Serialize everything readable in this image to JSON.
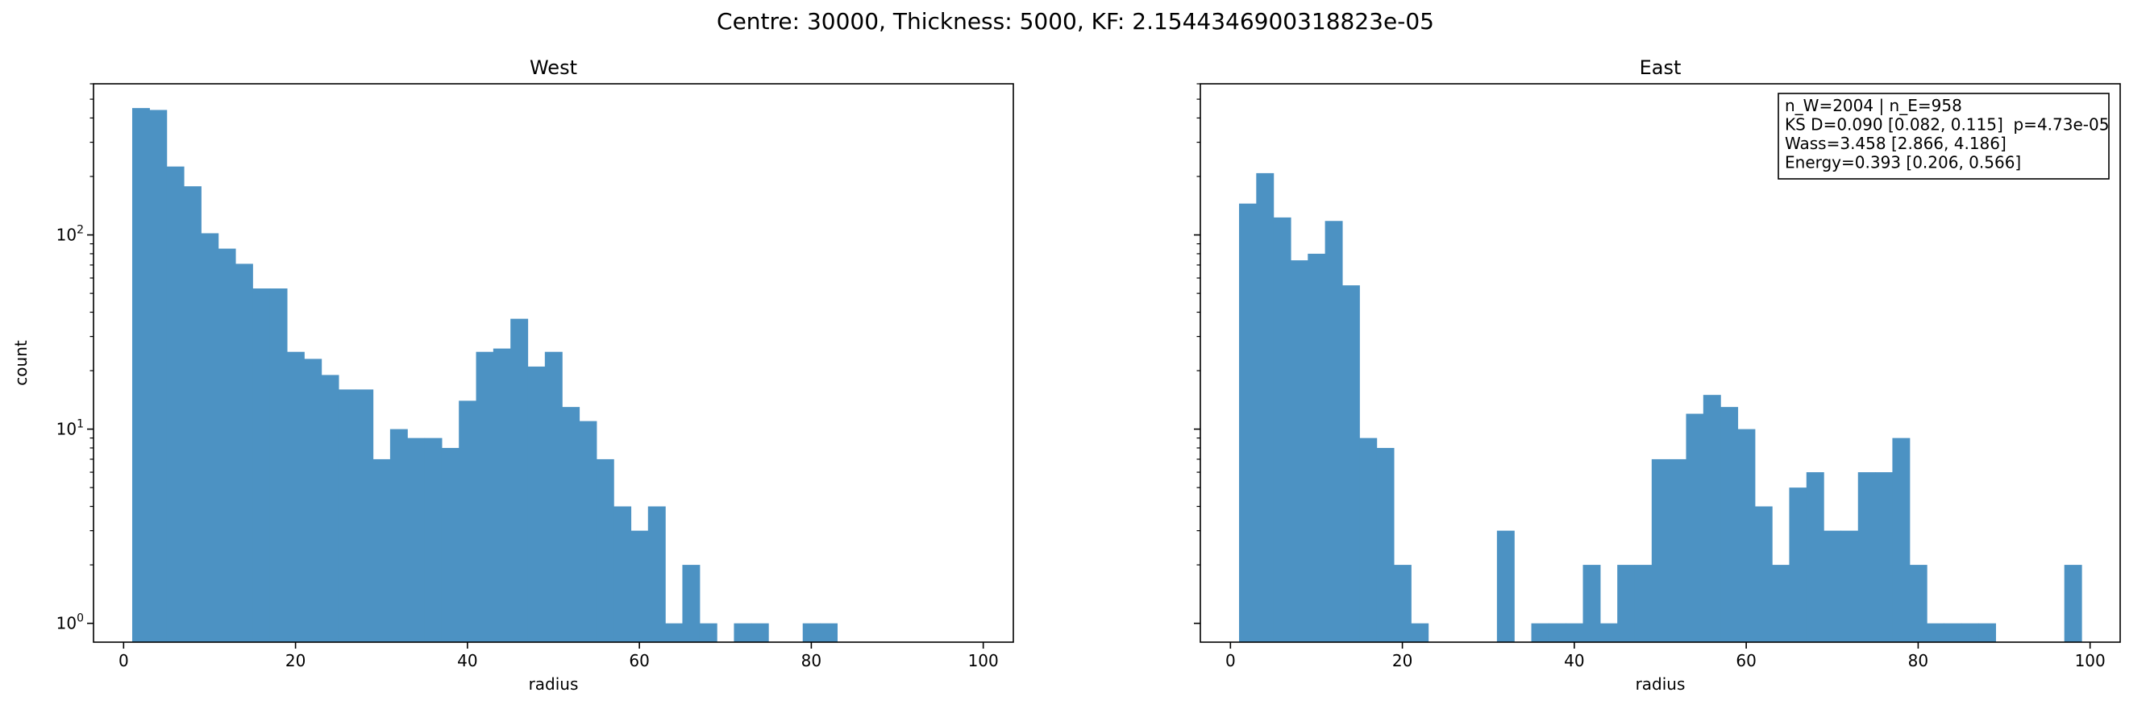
{
  "figure": {
    "suptitle": "Centre: 30000, Thickness: 5000, KF: 2.1544346900318823e-05",
    "bar_color": "#4c92c3"
  },
  "chart_data": [
    {
      "type": "bar",
      "title": "West",
      "xlabel": "radius",
      "ylabel": "count",
      "xlim": [
        -3.5,
        103.5
      ],
      "ylim": [
        0.8,
        600
      ],
      "yscale": "log",
      "xticks": [
        0,
        20,
        40,
        60,
        80,
        100
      ],
      "yticks": [
        {
          "value": 1,
          "base": "10",
          "exp": "0"
        },
        {
          "value": 10,
          "base": "10",
          "exp": "1"
        },
        {
          "value": 100,
          "base": "10",
          "exp": "2"
        }
      ],
      "bin_width": 2,
      "bins": [
        {
          "x": 1,
          "count": 450
        },
        {
          "x": 3,
          "count": 440
        },
        {
          "x": 5,
          "count": 225
        },
        {
          "x": 7,
          "count": 178
        },
        {
          "x": 9,
          "count": 102
        },
        {
          "x": 11,
          "count": 85
        },
        {
          "x": 13,
          "count": 71
        },
        {
          "x": 15,
          "count": 53
        },
        {
          "x": 17,
          "count": 53
        },
        {
          "x": 19,
          "count": 25
        },
        {
          "x": 21,
          "count": 23
        },
        {
          "x": 23,
          "count": 19
        },
        {
          "x": 25,
          "count": 16
        },
        {
          "x": 27,
          "count": 16
        },
        {
          "x": 29,
          "count": 7
        },
        {
          "x": 31,
          "count": 10
        },
        {
          "x": 33,
          "count": 9
        },
        {
          "x": 35,
          "count": 9
        },
        {
          "x": 37,
          "count": 8
        },
        {
          "x": 39,
          "count": 14
        },
        {
          "x": 41,
          "count": 25
        },
        {
          "x": 43,
          "count": 26
        },
        {
          "x": 45,
          "count": 37
        },
        {
          "x": 47,
          "count": 21
        },
        {
          "x": 49,
          "count": 25
        },
        {
          "x": 51,
          "count": 13
        },
        {
          "x": 53,
          "count": 11
        },
        {
          "x": 55,
          "count": 7
        },
        {
          "x": 57,
          "count": 4
        },
        {
          "x": 59,
          "count": 3
        },
        {
          "x": 61,
          "count": 4
        },
        {
          "x": 63,
          "count": 1
        },
        {
          "x": 65,
          "count": 2
        },
        {
          "x": 67,
          "count": 1
        },
        {
          "x": 71,
          "count": 1
        },
        {
          "x": 73,
          "count": 1
        },
        {
          "x": 79,
          "count": 1
        },
        {
          "x": 81,
          "count": 1
        }
      ]
    },
    {
      "type": "bar",
      "title": "East",
      "xlabel": "radius",
      "ylabel": "",
      "xlim": [
        -3.5,
        103.5
      ],
      "ylim": [
        0.8,
        600
      ],
      "yscale": "log",
      "xticks": [
        0,
        20,
        40,
        60,
        80,
        100
      ],
      "yticks": [],
      "bin_width": 2,
      "bins": [
        {
          "x": 1,
          "count": 145
        },
        {
          "x": 3,
          "count": 208
        },
        {
          "x": 5,
          "count": 123
        },
        {
          "x": 7,
          "count": 74
        },
        {
          "x": 9,
          "count": 80
        },
        {
          "x": 11,
          "count": 118
        },
        {
          "x": 13,
          "count": 55
        },
        {
          "x": 15,
          "count": 9
        },
        {
          "x": 17,
          "count": 8
        },
        {
          "x": 19,
          "count": 2
        },
        {
          "x": 21,
          "count": 1
        },
        {
          "x": 31,
          "count": 3
        },
        {
          "x": 35,
          "count": 1
        },
        {
          "x": 37,
          "count": 1
        },
        {
          "x": 39,
          "count": 1
        },
        {
          "x": 41,
          "count": 2
        },
        {
          "x": 43,
          "count": 1
        },
        {
          "x": 45,
          "count": 2
        },
        {
          "x": 47,
          "count": 2
        },
        {
          "x": 49,
          "count": 7
        },
        {
          "x": 51,
          "count": 7
        },
        {
          "x": 53,
          "count": 12
        },
        {
          "x": 55,
          "count": 15
        },
        {
          "x": 57,
          "count": 13
        },
        {
          "x": 59,
          "count": 10
        },
        {
          "x": 61,
          "count": 4
        },
        {
          "x": 63,
          "count": 2
        },
        {
          "x": 65,
          "count": 5
        },
        {
          "x": 67,
          "count": 6
        },
        {
          "x": 69,
          "count": 3
        },
        {
          "x": 71,
          "count": 3
        },
        {
          "x": 73,
          "count": 6
        },
        {
          "x": 75,
          "count": 6
        },
        {
          "x": 77,
          "count": 9
        },
        {
          "x": 79,
          "count": 2
        },
        {
          "x": 81,
          "count": 1
        },
        {
          "x": 83,
          "count": 1
        },
        {
          "x": 85,
          "count": 1
        },
        {
          "x": 87,
          "count": 1
        },
        {
          "x": 97,
          "count": 2
        }
      ],
      "annotation": [
        "n_W=2004 | n_E=958",
        "KS D=0.090 [0.082, 0.115]  p=4.73e-05",
        "Wass=3.458 [2.866, 4.186]",
        "Energy=0.393 [0.206, 0.566]"
      ]
    }
  ]
}
